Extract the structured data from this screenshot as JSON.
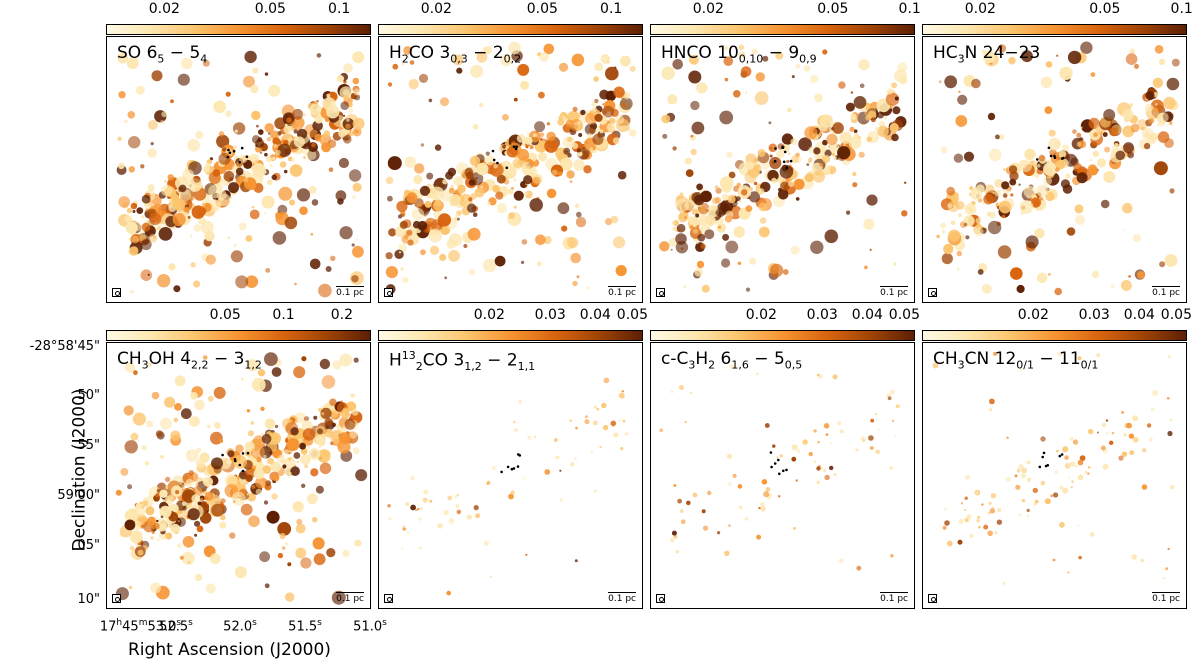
{
  "figure": {
    "x_axis_label": "Right Ascension (J2000)",
    "y_axis_label": "Declination (J2000)",
    "dec_ticks": [
      "-28°58'45\"",
      "50\"",
      "55\"",
      "59'00\"",
      "05\"",
      "10\""
    ],
    "ra_ticks": [
      {
        "h": "17",
        "hs": "h",
        "m": "45",
        "ms": "m",
        "s": "53.0",
        "ss": "s"
      },
      {
        "text": "52.5",
        "ss": "s"
      },
      {
        "text": "52.0",
        "ss": "s"
      },
      {
        "text": "51.5",
        "ss": "s"
      },
      {
        "text": "51.0",
        "ss": "s"
      }
    ],
    "scale_bar_label": "0.1 pc",
    "colormap": [
      "#fffbe6",
      "#fde7b0",
      "#fcc56e",
      "#f69432",
      "#d9650f",
      "#a04406",
      "#5e2003"
    ]
  },
  "panels": [
    {
      "label_html": "SO 6<sub>5</sub> − 5<sub>4</sub>",
      "ticks": [
        "0.02",
        "0.05",
        "0.1"
      ],
      "tick_frac": [
        0.22,
        0.62,
        0.88
      ],
      "intensity": 1.0,
      "seed": 11
    },
    {
      "label_html": "H<sub>2</sub>CO 3<sub>0,3</sub> − 2<sub>0,2</sub>",
      "ticks": [
        "0.02",
        "0.05",
        "0.1"
      ],
      "tick_frac": [
        0.22,
        0.62,
        0.88
      ],
      "intensity": 0.9,
      "seed": 23
    },
    {
      "label_html": "HNCO 10<sub>0,10</sub> − 9<sub>0,9</sub>",
      "ticks": [
        "0.02",
        "0.05",
        "0.1"
      ],
      "tick_frac": [
        0.22,
        0.69,
        0.98
      ],
      "intensity": 0.75,
      "seed": 37
    },
    {
      "label_html": "HC<sub>3</sub>N 24−23",
      "ticks": [
        "0.02",
        "0.05",
        "0.1"
      ],
      "tick_frac": [
        0.22,
        0.69,
        0.98
      ],
      "intensity": 0.65,
      "seed": 41
    },
    {
      "label_html": "CH<sub>3</sub>OH 4<sub>2,2</sub> − 3<sub>1,2</sub>",
      "ticks": [
        "0.05",
        "0.1",
        "0.2"
      ],
      "tick_frac": [
        0.45,
        0.67,
        0.89
      ],
      "intensity": 1.1,
      "seed": 53
    },
    {
      "label_html": "H<sup>13</sup><sub>2</sub>CO 3<sub>1,2</sub> − 2<sub>1,1</sub>",
      "ticks": [
        "0.02",
        "0.03",
        "0.04",
        "0.05"
      ],
      "tick_frac": [
        0.42,
        0.65,
        0.82,
        0.96
      ],
      "intensity": 0.08,
      "seed": 67
    },
    {
      "label_html": "c-C<sub>3</sub>H<sub>2</sub> 6<sub>1,6</sub> − 5<sub>0,5</sub>",
      "ticks": [
        "0.02",
        "0.03",
        "0.04",
        "0.05"
      ],
      "tick_frac": [
        0.42,
        0.65,
        0.82,
        0.96
      ],
      "intensity": 0.12,
      "seed": 71
    },
    {
      "label_html": "CH<sub>3</sub>CN 12<sub>0/1</sub> − 11<sub>0/1</sub>",
      "ticks": [
        "0.02",
        "0.03",
        "0.04",
        "0.05"
      ],
      "tick_frac": [
        0.42,
        0.65,
        0.82,
        0.96
      ],
      "intensity": 0.2,
      "seed": 83
    }
  ]
}
